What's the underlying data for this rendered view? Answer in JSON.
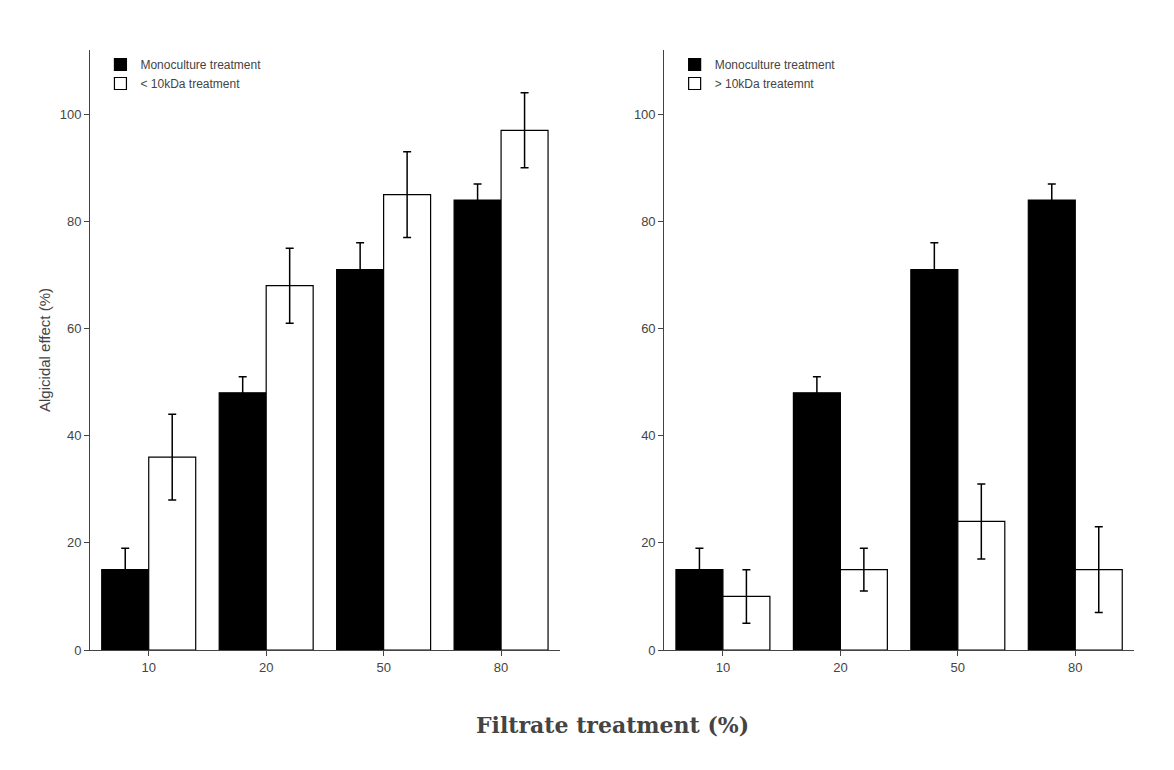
{
  "chart_data": [
    {
      "type": "bar",
      "ylabel": "Algicidal effect (%)",
      "xlabel": "Filtrate treatment (%)",
      "categories": [
        "10",
        "20",
        "50",
        "80"
      ],
      "series": [
        {
          "name": "Monoculture treatment",
          "color": "#000000",
          "values": [
            15,
            48,
            71,
            84
          ],
          "errors": [
            4,
            3,
            5,
            3
          ]
        },
        {
          "name": "< 10kDa treatment",
          "color": "#ffffff",
          "values": [
            36,
            68,
            85,
            97
          ],
          "errors": [
            8,
            7,
            8,
            7
          ]
        }
      ],
      "ylim": [
        0,
        112
      ],
      "yticks": [
        0,
        20,
        40,
        60,
        80,
        100
      ],
      "legend": "upper left",
      "grid": false
    },
    {
      "type": "bar",
      "categories": [
        "10",
        "20",
        "50",
        "80"
      ],
      "series": [
        {
          "name": "Monoculture treatment",
          "color": "#000000",
          "values": [
            15,
            48,
            71,
            84
          ],
          "errors": [
            4,
            3,
            5,
            3
          ]
        },
        {
          "name": "> 10kDa treatemnt",
          "color": "#ffffff",
          "values": [
            10,
            15,
            24,
            15
          ],
          "errors": [
            5,
            4,
            7,
            8
          ]
        }
      ],
      "ylim": [
        0,
        112
      ],
      "yticks": [
        0,
        20,
        40,
        60,
        80,
        100
      ],
      "legend": "upper left",
      "grid": false
    }
  ]
}
